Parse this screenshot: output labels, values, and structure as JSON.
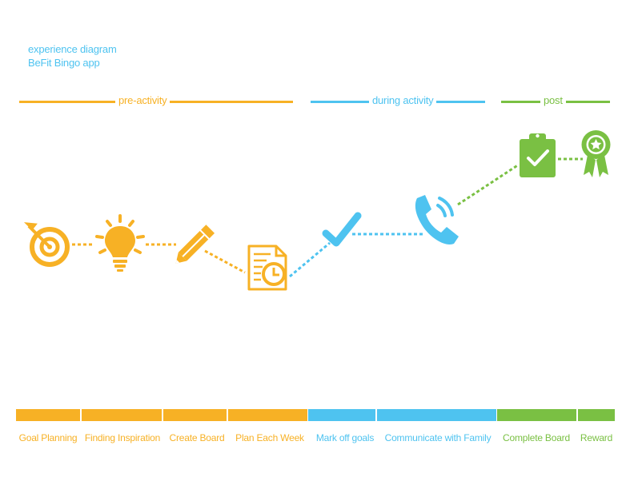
{
  "header": {
    "line1": "experience diagram",
    "line2": "BeFit Bingo app"
  },
  "colors": {
    "pre": "#f7b125",
    "during": "#4ec3f0",
    "post": "#7ac043",
    "title": "#4ec3f0"
  },
  "phases": [
    {
      "label": "pre-activity",
      "color": "#f7b125"
    },
    {
      "label": "during activity",
      "color": "#4ec3f0"
    },
    {
      "label": "post",
      "color": "#7ac043"
    }
  ],
  "steps": [
    {
      "label": "Goal Planning",
      "icon": "target-icon",
      "color": "#f7b125"
    },
    {
      "label": "Finding Inspiration",
      "icon": "lightbulb-icon",
      "color": "#f7b125"
    },
    {
      "label": "Create Board",
      "icon": "pencil-icon",
      "color": "#f7b125"
    },
    {
      "label": "Plan Each Week",
      "icon": "schedule-document-icon",
      "color": "#f7b125"
    },
    {
      "label": "Mark off goals",
      "icon": "checkmark-icon",
      "color": "#4ec3f0"
    },
    {
      "label": "Communicate with Family",
      "icon": "phone-icon",
      "color": "#4ec3f0"
    },
    {
      "label": "Complete Board",
      "icon": "clipboard-check-icon",
      "color": "#7ac043"
    },
    {
      "label": "Reward",
      "icon": "award-ribbon-icon",
      "color": "#7ac043"
    }
  ]
}
